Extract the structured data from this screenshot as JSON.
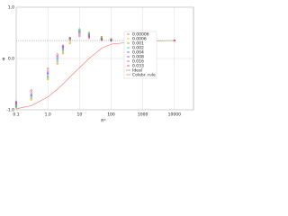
{
  "chart_data": {
    "type": "scatter",
    "xlabel": "R*",
    "ylabel": "φ",
    "xscale": "log",
    "grid": true,
    "legend": "right",
    "x": [
      0.1,
      0.3,
      1,
      2,
      3,
      5,
      10,
      20,
      50,
      100,
      1000,
      10000
    ],
    "xlim": [
      0.1,
      40000
    ],
    "ylim": [
      -1,
      1
    ],
    "xticks": [
      0.1,
      {
        "value": 1,
        "label": "1.0"
      },
      10,
      100,
      1000,
      10000
    ],
    "yticks": [
      {
        "value": -1,
        "label": "-1.0"
      },
      {
        "value": 0,
        "label": "0.0"
      },
      {
        "value": 1,
        "label": "1.0"
      }
    ],
    "series": [
      {
        "name": "0.00006",
        "color": "#e8731a",
        "mode": "markers",
        "values": [
          -0.95,
          -0.8,
          -0.4,
          -0.1,
          0.1,
          0.3,
          0.52,
          0.5,
          0.42,
          0.38,
          0.35,
          0.35
        ]
      },
      {
        "name": "0.0006",
        "color": "#e8c31a",
        "mode": "markers",
        "values": [
          -0.94,
          -0.78,
          -0.38,
          -0.08,
          0.12,
          0.33,
          0.55,
          0.48,
          0.4,
          0.37,
          0.35,
          0.35
        ]
      },
      {
        "name": "0.001",
        "color": "#6cc04a",
        "mode": "markers",
        "values": [
          -0.93,
          -0.76,
          -0.36,
          -0.05,
          0.15,
          0.36,
          0.57,
          0.5,
          0.41,
          0.37,
          0.35,
          0.35
        ]
      },
      {
        "name": "0.002",
        "color": "#2ec9b4",
        "mode": "markers",
        "values": [
          -0.92,
          -0.74,
          -0.34,
          -0.03,
          0.17,
          0.38,
          0.55,
          0.47,
          0.39,
          0.36,
          0.35,
          0.35
        ]
      },
      {
        "name": "0.004",
        "color": "#3a78d8",
        "mode": "markers",
        "values": [
          -0.9,
          -0.72,
          -0.3,
          0.0,
          0.2,
          0.4,
          0.53,
          0.46,
          0.38,
          0.36,
          0.35,
          0.35
        ]
      },
      {
        "name": "0.008",
        "color": "#8a4ad8",
        "mode": "markers",
        "values": [
          -0.88,
          -0.7,
          -0.28,
          0.03,
          0.22,
          0.4,
          0.5,
          0.44,
          0.37,
          0.36,
          0.35,
          0.35
        ]
      },
      {
        "name": "0.016",
        "color": "#d84ac4",
        "mode": "markers",
        "values": [
          -0.86,
          -0.66,
          -0.25,
          0.05,
          0.24,
          0.4,
          0.47,
          0.42,
          0.37,
          0.35,
          0.35,
          0.35
        ]
      },
      {
        "name": "0.033",
        "color": "#d84a4a",
        "mode": "markers",
        "values": [
          -0.84,
          -0.62,
          -0.2,
          0.08,
          0.25,
          0.38,
          0.44,
          0.4,
          0.36,
          0.35,
          0.35,
          0.35
        ]
      },
      {
        "name": "Ideal",
        "color": "#999999",
        "mode": "line",
        "values": [
          0.35,
          0.35,
          0.35,
          0.35,
          0.35,
          0.35,
          0.35,
          0.35,
          0.35,
          0.35,
          0.35,
          0.35
        ]
      },
      {
        "name": "Colebr. rule",
        "color": "#f08080",
        "mode": "line",
        "values": [
          -0.98,
          -0.92,
          -0.75,
          -0.6,
          -0.5,
          -0.36,
          -0.18,
          0.0,
          0.2,
          0.28,
          0.34,
          0.35
        ]
      }
    ]
  }
}
